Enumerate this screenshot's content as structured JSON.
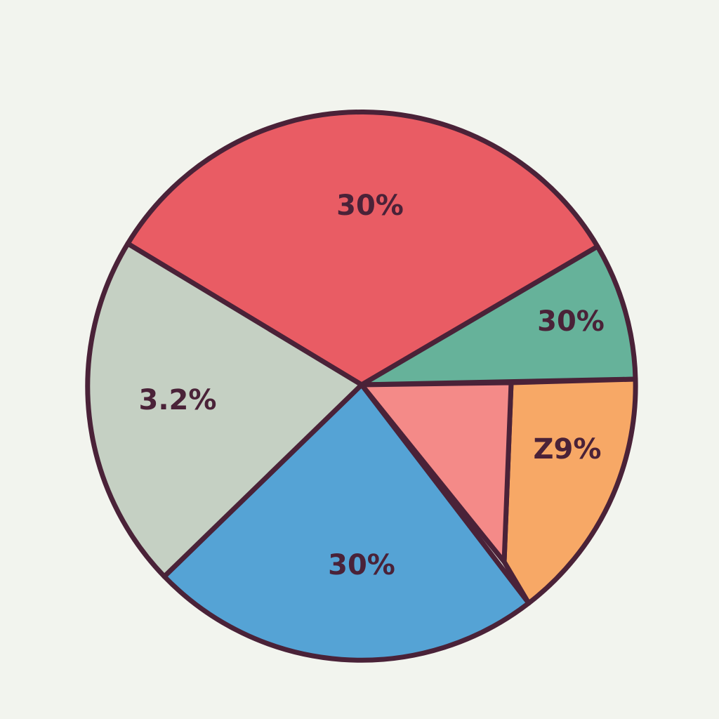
{
  "slices": [
    {
      "label": "30%",
      "color": "#e95c64"
    },
    {
      "label": "30%",
      "color": "#66b29a"
    },
    {
      "label": "Z9%",
      "color": "#f7a866"
    },
    {
      "color": "#f48a88"
    },
    {
      "label": "30%",
      "color": "#55a3d5"
    },
    {
      "label": "3.2%",
      "color": "#c5d0c3"
    }
  ]
}
